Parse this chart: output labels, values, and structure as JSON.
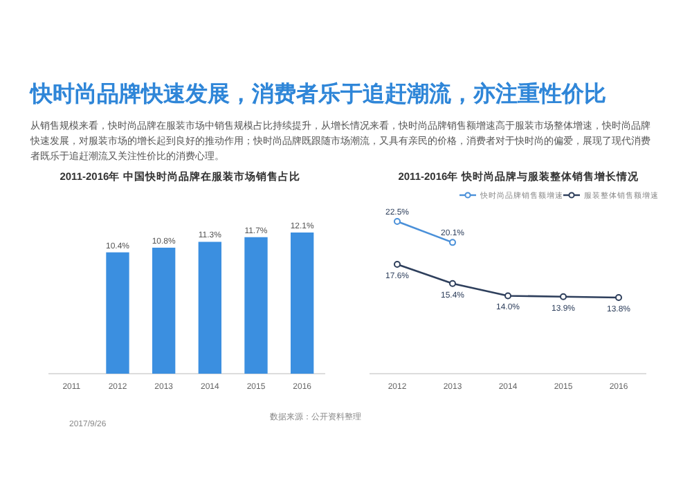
{
  "chart_data": [
    {
      "type": "other",
      "title": "快时尚品牌快速发展，消费者乐于追赶潮流，亦注重性价比",
      "subtitle": "从销售规模来看，快时尚品牌在服装市场中销售规模占比持续提升，从增长情况来看，快时尚品牌销售额增速高于服装市场整体增速，快时尚品牌快速发展，对服装市场的增长起到良好的推动作用；快时尚品牌既跟随市场潮流，又具有亲民的价格，消费者对于快时尚的偏爱，展现了现代消费者既乐于追赶潮流又关注性价比的消费心理。",
      "annotations": [
        "2017/9/26",
        "数据来源：公开资料整理"
      ]
    },
    {
      "type": "bar",
      "title": "2011-2016年 中国快时尚品牌在服装市场销售占比",
      "categories": [
        "2011",
        "2012",
        "2013",
        "2014",
        "2015",
        "2016"
      ],
      "values": [
        null,
        10.4,
        10.8,
        11.3,
        11.7,
        12.1
      ],
      "value_labels": [
        null,
        "10.4%",
        "10.8%",
        "11.3%",
        "11.7%",
        "12.1%"
      ],
      "color": "#3b8fe0"
    },
    {
      "type": "line",
      "title": "2011-2016年 快时尚品牌与服装整体销售增长情况",
      "categories": [
        "2012",
        "2013",
        "2014",
        "2015",
        "2016"
      ],
      "legend": "top right",
      "marker": "circle",
      "series": [
        {
          "name": "快时尚品牌销售额增速",
          "color": "#4a90d9",
          "values": [
            22.5,
            20.1,
            null,
            null,
            null
          ],
          "value_labels": [
            "22.5%",
            "20.1%",
            null,
            null,
            null
          ]
        },
        {
          "name": "服装整体销售额增速",
          "color": "#2e3f5c",
          "values": [
            17.6,
            15.4,
            14.0,
            13.9,
            13.8
          ],
          "value_labels": [
            "17.6%",
            "15.4%",
            "14.0%",
            "13.9%",
            "13.8%"
          ]
        }
      ]
    }
  ]
}
